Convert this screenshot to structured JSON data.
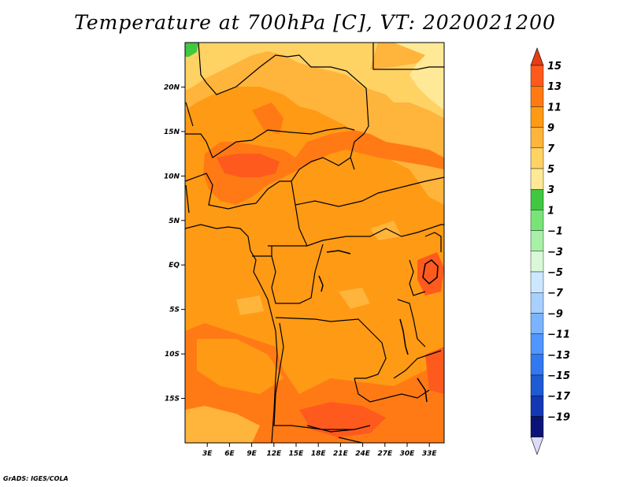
{
  "title": "Temperature at 700hPa [C], VT: 2020021200",
  "footer": "GrADS: IGES/COLA",
  "map": {
    "lat_ticks": [
      {
        "value": 20,
        "label": "20N"
      },
      {
        "value": 15,
        "label": "15N"
      },
      {
        "value": 10,
        "label": "10N"
      },
      {
        "value": 5,
        "label": "5N"
      },
      {
        "value": 0,
        "label": "EQ"
      },
      {
        "value": -5,
        "label": "5S"
      },
      {
        "value": -10,
        "label": "10S"
      },
      {
        "value": -15,
        "label": "15S"
      }
    ],
    "lon_ticks": [
      {
        "value": 3,
        "label": "3E"
      },
      {
        "value": 6,
        "label": "6E"
      },
      {
        "value": 9,
        "label": "9E"
      },
      {
        "value": 12,
        "label": "12E"
      },
      {
        "value": 15,
        "label": "15E"
      },
      {
        "value": 18,
        "label": "18E"
      },
      {
        "value": 21,
        "label": "21E"
      },
      {
        "value": 24,
        "label": "24E"
      },
      {
        "value": 27,
        "label": "27E"
      },
      {
        "value": 30,
        "label": "30E"
      },
      {
        "value": 33,
        "label": "33E"
      }
    ],
    "lon_range": [
      0,
      35
    ],
    "lat_range": [
      -20,
      25
    ]
  },
  "colorbar": {
    "labels": [
      "15",
      "13",
      "11",
      "9",
      "7",
      "5",
      "3",
      "1",
      "−1",
      "−3",
      "−5",
      "−7",
      "−9",
      "−11",
      "−13",
      "−15",
      "−17",
      "−19"
    ],
    "colors_top_to_bottom": [
      "#ff5a1e",
      "#ff7a14",
      "#ff9a14",
      "#ffb43c",
      "#ffd264",
      "#ffe896",
      "#40c840",
      "#78e478",
      "#a8f0a8",
      "#d8f8d8",
      "#cce8ff",
      "#a8d0ff",
      "#7ab4ff",
      "#5096ff",
      "#3278f0",
      "#1e5ad2",
      "#1438b4",
      "#0a1478"
    ],
    "top_arrow_color": "#e63c14",
    "bottom_arrow_color": "#dcdcfa"
  }
}
